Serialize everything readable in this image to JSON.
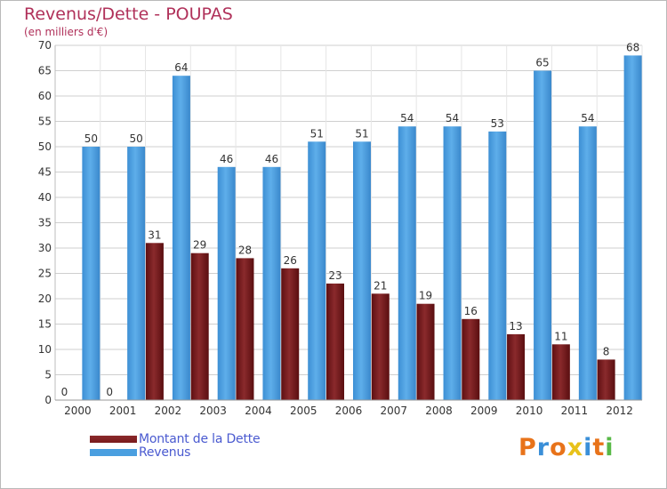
{
  "header": {
    "title": "Revenus/Dette - POUPAS",
    "subtitle": "(en milliers d'€)"
  },
  "logo": {
    "text": "Proxiti",
    "colors": [
      "#e8731a",
      "#3a8fd8",
      "#e8731a",
      "#e8c21a",
      "#3a8fd8",
      "#e8731a",
      "#58b947"
    ]
  },
  "colors": {
    "dette": "#7a1a1c",
    "revenus": "#4a9fe0",
    "grid": "#cfcfcf",
    "axis_text": "#333333"
  },
  "chart_data": {
    "type": "bar",
    "title": "Revenus/Dette - POUPAS",
    "subtitle": "(en milliers d'€)",
    "xlabel": "",
    "ylabel": "",
    "ylim": [
      0,
      70
    ],
    "yticks": [
      0,
      5,
      10,
      15,
      20,
      25,
      30,
      35,
      40,
      45,
      50,
      55,
      60,
      65,
      70
    ],
    "grid": true,
    "legend_position": "bottom-left",
    "categories": [
      "2000",
      "2001",
      "2002",
      "2003",
      "2004",
      "2005",
      "2006",
      "2007",
      "2008",
      "2009",
      "2010",
      "2011",
      "2012"
    ],
    "series": [
      {
        "name": "Montant de la Dette",
        "values": [
          0,
          0,
          31,
          29,
          28,
          26,
          23,
          21,
          19,
          16,
          13,
          11,
          8
        ]
      },
      {
        "name": "Revenus",
        "values": [
          50,
          50,
          64,
          46,
          46,
          51,
          51,
          54,
          54,
          53,
          65,
          54,
          68
        ]
      }
    ]
  }
}
